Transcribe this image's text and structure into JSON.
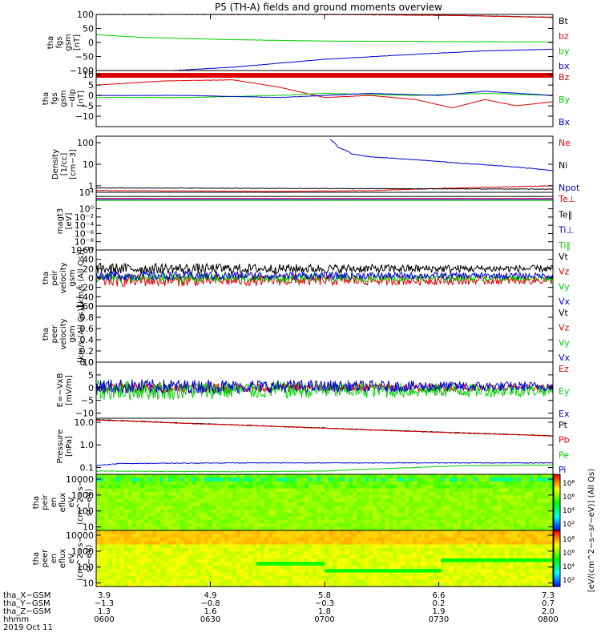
{
  "title": "P5 (TH-A) fields and ground moments overview",
  "colors": {
    "black": "#000000",
    "red": "#e00000",
    "green": "#00d000",
    "blue": "#0000d0"
  },
  "chart_data": [
    {
      "id": "fgs_gsm",
      "type": "line",
      "ylabel": [
        "tha",
        "fgs",
        "gsm",
        "[nT]"
      ],
      "ylim": [
        -100,
        100
      ],
      "yticks": [
        {
          "v": 100,
          "label": "100"
        },
        {
          "v": 50,
          "label": "50"
        },
        {
          "v": 0,
          "label": "0"
        },
        {
          "v": -50,
          "label": "−50"
        },
        {
          "v": -100,
          "label": "−100"
        }
      ],
      "series": [
        {
          "name": "Bt",
          "color": "#000000",
          "x": [
            0,
            0.3,
            0.6,
            0.8,
            1
          ],
          "y": [
            100,
            100,
            100,
            96,
            90
          ]
        },
        {
          "name": "bz",
          "color": "#e00000",
          "x": [
            0,
            0.5,
            0.8,
            1
          ],
          "y": [
            100,
            100,
            96,
            89
          ]
        },
        {
          "name": "by",
          "color": "#00d000",
          "x": [
            0,
            0.1,
            0.3,
            0.5,
            0.8,
            1
          ],
          "y": [
            28,
            18,
            10,
            5,
            3,
            2
          ]
        },
        {
          "name": "bx",
          "color": "#0000d0",
          "x": [
            0.17,
            0.3,
            0.5,
            0.7,
            0.85,
            1
          ],
          "y": [
            -100,
            -88,
            -60,
            -42,
            -30,
            -24
          ]
        }
      ]
    },
    {
      "id": "fgs_gse",
      "type": "line",
      "ylabel": [
        "tha",
        "fgs",
        "gsm",
        "−dip",
        "[nT]"
      ],
      "ylim": [
        -15,
        12
      ],
      "yticks": [
        {
          "v": 10,
          "label": "10"
        },
        {
          "v": 5,
          "label": "5"
        },
        {
          "v": 0,
          "label": "0"
        },
        {
          "v": -5,
          "label": "−5"
        },
        {
          "v": -10,
          "label": "−10"
        }
      ],
      "series": [
        {
          "name": "Bz",
          "color": "#e00000",
          "x": [
            0,
            0.15,
            0.3,
            0.4,
            0.5,
            0.6,
            0.7,
            0.78,
            0.85,
            0.92,
            1
          ],
          "y": [
            5,
            7,
            7.5,
            4,
            -1,
            0,
            -2,
            -6,
            -2,
            -5,
            -3
          ]
        },
        {
          "name": "By",
          "color": "#00d000",
          "x": [
            0,
            0.2,
            0.4,
            0.5,
            0.7,
            0.85,
            1
          ],
          "y": [
            -1,
            -1,
            0,
            1,
            0,
            1,
            0
          ]
        },
        {
          "name": "Bx",
          "color": "#0000d0",
          "x": [
            0,
            0.2,
            0.4,
            0.6,
            0.75,
            0.85,
            1
          ],
          "y": [
            0,
            0,
            -1,
            1,
            0,
            2,
            0
          ]
        }
      ],
      "extra_band": {
        "color": "#e00000"
      }
    },
    {
      "id": "density",
      "type": "line",
      "log": true,
      "ylabel": [
        "Density",
        "[1/cc]",
        "[cm−3]"
      ],
      "ylim": [
        0.5,
        200
      ],
      "yticks": [
        {
          "v": 100,
          "label": "100"
        },
        {
          "v": 10,
          "label": "10"
        },
        {
          "v": 1,
          "label": "1"
        }
      ],
      "series": [
        {
          "name": "Ne",
          "color": "#e00000",
          "x": [
            0,
            0.4,
            0.6,
            0.8,
            1
          ],
          "y": [
            0.6,
            0.55,
            0.6,
            0.8,
            1.0
          ]
        },
        {
          "name": "Ni",
          "color": "#000000",
          "x": [
            0,
            0.5,
            1
          ],
          "y": [
            0.8,
            0.75,
            0.7
          ]
        },
        {
          "name": "Npot",
          "color": "#0000d0",
          "x": [
            0.51,
            0.53,
            0.56,
            0.6,
            0.7,
            0.8,
            0.9,
            1
          ],
          "y": [
            150,
            60,
            30,
            22,
            16,
            11,
            8,
            5
          ]
        }
      ]
    },
    {
      "id": "temperature",
      "type": "line",
      "log": true,
      "ylabel": [
        "magt3",
        "[eV]"
      ],
      "ylim": [
        1e-10,
        10000.0
      ],
      "yticks": [
        {
          "v": 10000.0,
          "label": "10⁴"
        },
        {
          "v": 1,
          "label": "10⁰"
        },
        {
          "v": 0.01,
          "label": "10⁻²"
        },
        {
          "v": 0.0001,
          "label": "10⁻⁴"
        },
        {
          "v": 1e-06,
          "label": "10⁻⁶"
        },
        {
          "v": 1e-08,
          "label": "10⁻⁸"
        },
        {
          "v": 1e-10,
          "label": "10⁻¹⁰"
        }
      ],
      "series": [
        {
          "name": "Te⊥",
          "color": "#e00000",
          "x": [
            0,
            1
          ],
          "y": [
            300,
            300
          ]
        },
        {
          "name": "Te‖",
          "color": "#000000",
          "x": [
            0,
            1
          ],
          "y": [
            1000,
            1000
          ]
        },
        {
          "name": "Ti⊥",
          "color": "#0000d0",
          "x": [
            0,
            1
          ],
          "y": [
            200,
            200
          ]
        },
        {
          "name": "Ti‖",
          "color": "#00d000",
          "x": [
            0,
            1
          ],
          "y": [
            100,
            100
          ]
        }
      ]
    },
    {
      "id": "peir_velocity",
      "type": "line",
      "ylabel": [
        "tha",
        "peir",
        "velocity",
        "gsm",
        "[km/s (All Qs)]"
      ],
      "ylim": [
        -60,
        60
      ],
      "yticks": [
        {
          "v": 60,
          "label": "60"
        },
        {
          "v": 40,
          "label": "40"
        },
        {
          "v": 20,
          "label": "20"
        },
        {
          "v": 0,
          "label": "0"
        },
        {
          "v": -20,
          "label": "−20"
        },
        {
          "v": -40,
          "label": "−40"
        },
        {
          "v": -60,
          "label": "−60"
        }
      ],
      "series": [
        {
          "name": "Vt",
          "color": "#000000",
          "mean": 20,
          "noise": 12
        },
        {
          "name": "Vz",
          "color": "#e00000",
          "mean": -5,
          "noise": 14
        },
        {
          "name": "Vy",
          "color": "#00d000",
          "mean": 0,
          "noise": 10
        },
        {
          "name": "Vx",
          "color": "#0000d0",
          "mean": 5,
          "noise": 10
        }
      ]
    },
    {
      "id": "peer_velocity",
      "type": "line",
      "ylabel": [
        "tha",
        "peer",
        "velocity",
        "gsm",
        "[km/s (All Qs)]"
      ],
      "ylim": [
        0,
        1
      ],
      "yticks": [
        {
          "v": 1.0,
          "label": "1.0"
        },
        {
          "v": 0.8,
          "label": "0.8"
        },
        {
          "v": 0.6,
          "label": "0.6"
        },
        {
          "v": 0.4,
          "label": "0.4"
        },
        {
          "v": 0.2,
          "label": "0.2"
        },
        {
          "v": 0.0,
          "label": "0.0"
        }
      ],
      "series": [
        {
          "name": "Vt",
          "color": "#000000"
        },
        {
          "name": "Vz",
          "color": "#e00000"
        },
        {
          "name": "Vy",
          "color": "#00d000"
        },
        {
          "name": "Vx",
          "color": "#0000d0"
        }
      ]
    },
    {
      "id": "efield",
      "type": "line",
      "ylabel": [
        "E=−VxB",
        "[mV/m]"
      ],
      "ylim": [
        -12,
        10
      ],
      "yticks": [
        {
          "v": 10,
          "label": "10"
        },
        {
          "v": 5,
          "label": "5"
        },
        {
          "v": 0,
          "label": "0"
        },
        {
          "v": -5,
          "label": "−5"
        },
        {
          "v": -10,
          "label": "−10"
        }
      ],
      "series": [
        {
          "name": "Ez",
          "color": "#e00000",
          "mean": 0,
          "noise": 2
        },
        {
          "name": "Ey",
          "color": "#00d000",
          "mean": -1,
          "noise": 4
        },
        {
          "name": "Ex",
          "color": "#0000d0",
          "mean": 0.5,
          "noise": 3
        }
      ]
    },
    {
      "id": "pressure",
      "type": "line",
      "log": true,
      "ylabel": [
        "Pressure",
        "[nPa]"
      ],
      "ylim": [
        0.05,
        15
      ],
      "yticks": [
        {
          "v": 10,
          "label": "10.0"
        },
        {
          "v": 1,
          "label": "1.0"
        },
        {
          "v": 0.1,
          "label": "0.1"
        }
      ],
      "series": [
        {
          "name": "Pt",
          "color": "#000000",
          "x": [
            0,
            0.2,
            0.4,
            0.6,
            0.8,
            1
          ],
          "y": [
            13,
            9,
            6.5,
            4.6,
            3.4,
            2.5
          ]
        },
        {
          "name": "Pb",
          "color": "#e00000",
          "x": [
            0,
            0.2,
            0.4,
            0.6,
            0.8,
            1
          ],
          "y": [
            12.5,
            8.8,
            6.4,
            4.5,
            3.3,
            2.45
          ]
        },
        {
          "name": "Pe",
          "color": "#00d000",
          "x": [
            0,
            0.3,
            0.5,
            0.7,
            0.8,
            1
          ],
          "y": [
            0.07,
            0.065,
            0.07,
            0.1,
            0.12,
            0.13
          ]
        },
        {
          "name": "Pi",
          "color": "#0000d0",
          "x": [
            0,
            0.05,
            0.3,
            0.6,
            1
          ],
          "y": [
            0.12,
            0.15,
            0.16,
            0.16,
            0.16
          ]
        }
      ]
    },
    {
      "id": "peir_spec",
      "type": "heatmap",
      "ylabel": [
        "tha",
        "peir",
        "en",
        "eflux",
        "eV",
        "(cm^2−s−",
        "sr−eV)"
      ],
      "yticks": [
        {
          "v": 10000,
          "label": "10000"
        },
        {
          "v": 1000,
          "label": "1000"
        },
        {
          "v": 100,
          "label": "100"
        },
        {
          "v": 10,
          "label": "10"
        }
      ],
      "ylim": [
        6,
        20000
      ]
    },
    {
      "id": "peer_spec",
      "type": "heatmap",
      "ylabel": [
        "tha",
        "peer",
        "en",
        "eflux",
        "eV",
        "(cm^2−s−",
        "sr−eV)"
      ],
      "yticks": [
        {
          "v": 10000,
          "label": "10000"
        },
        {
          "v": 1000,
          "label": "1000"
        },
        {
          "v": 100,
          "label": "100"
        },
        {
          "v": 10,
          "label": "10"
        }
      ],
      "ylim": [
        6,
        20000
      ]
    }
  ],
  "colorbar": {
    "label": "[eV/(cm^2−s−sr−eV)] (All Qs)",
    "ticks_top": [
      "10⁸",
      "10⁶",
      "10⁴",
      "10²"
    ],
    "ticks_bottom": [
      "10⁸",
      "10⁶",
      "10⁴",
      "10²"
    ]
  },
  "xaxis": {
    "row_labels": [
      "tha_X−GSM",
      "tha_Y−GSM",
      "tha_Z−GSM",
      "hhmm",
      "2019 Oct 11"
    ],
    "ticks": [
      {
        "frac": 0.0,
        "x": "3.9",
        "y": "−1.3",
        "z": "1.3",
        "t": "0600"
      },
      {
        "frac": 0.25,
        "x": "4.9",
        "y": "−0.8",
        "z": "1.6",
        "t": "0630"
      },
      {
        "frac": 0.5,
        "x": "5.8",
        "y": "−0.3",
        "z": "1.8",
        "t": "0700"
      },
      {
        "frac": 0.75,
        "x": "6.6",
        "y": "0.2",
        "z": "1.9",
        "t": "0730"
      },
      {
        "frac": 1.0,
        "x": "7.3",
        "y": "0.7",
        "z": "2.0",
        "t": "0800"
      }
    ]
  }
}
